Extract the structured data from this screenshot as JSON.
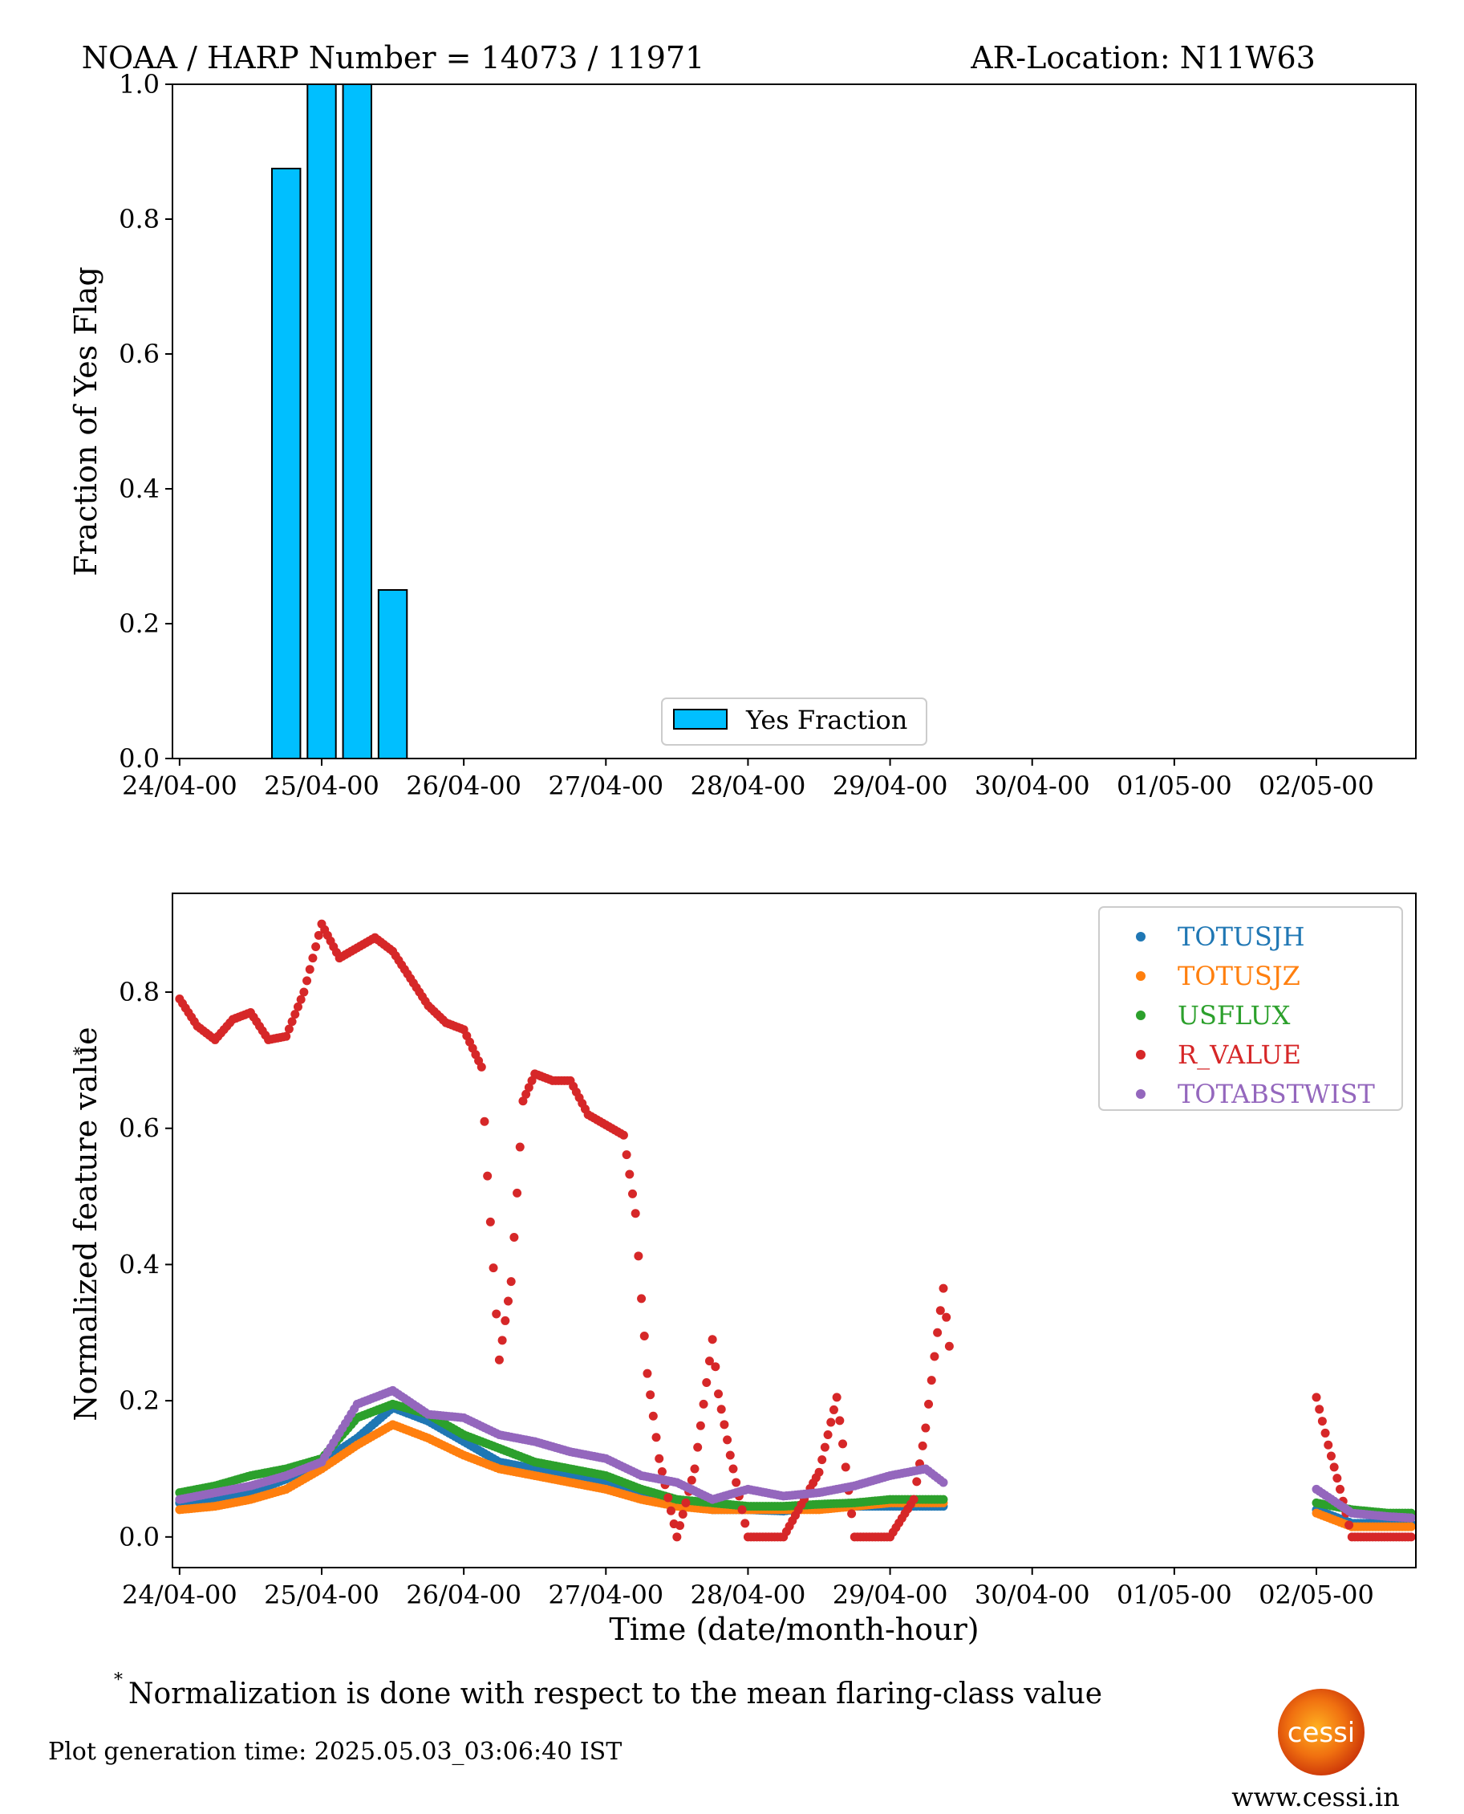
{
  "figure": {
    "footnote": "Normalization is done with respect to the mean flaring-class value",
    "footnote_marker": "*",
    "generation_time": "Plot generation time: 2025.05.03_03:06:40 IST",
    "logo_text": "cessi",
    "website": "www.cessi.in"
  },
  "chart_data": [
    {
      "type": "bar",
      "title_left": "NOAA / HARP Number = 14073 / 11971",
      "title_right": "AR-Location: N11W63",
      "ylabel": "Fraction of Yes Flag",
      "xlabel": "",
      "ylim": [
        0,
        1.0
      ],
      "xlim_days": [
        -0.05,
        8.7
      ],
      "yticks": [
        "0.0",
        "0.2",
        "0.4",
        "0.6",
        "0.8",
        "1.0"
      ],
      "xticks": [
        "24/04-00",
        "25/04-00",
        "26/04-00",
        "27/04-00",
        "28/04-00",
        "29/04-00",
        "30/04-00",
        "01/05-00",
        "02/05-00"
      ],
      "legend": {
        "label": "Yes Fraction",
        "position": "lower-center"
      },
      "color": "#00bfff",
      "bars": [
        {
          "x": "24/04-18",
          "value": 0.875
        },
        {
          "x": "25/04-00",
          "value": 1.0
        },
        {
          "x": "25/04-06",
          "value": 1.0
        },
        {
          "x": "25/04-12",
          "value": 0.25
        }
      ]
    },
    {
      "type": "scatter",
      "ylabel": "Normalized feature value",
      "ylabel_marker": "*",
      "xlabel": "Time (date/month-hour)",
      "ylim": [
        -0.045,
        0.945
      ],
      "xlim_days": [
        -0.05,
        8.7
      ],
      "yticks": [
        "0.0",
        "0.2",
        "0.4",
        "0.6",
        "0.8"
      ],
      "xticks": [
        "24/04-00",
        "25/04-00",
        "26/04-00",
        "27/04-00",
        "28/04-00",
        "29/04-00",
        "30/04-00",
        "01/05-00",
        "02/05-00"
      ],
      "legend_position": "upper-right",
      "series": [
        {
          "name": "TOTUSJH",
          "color": "#1f77b4",
          "points": [
            [
              "24/04-00",
              0.05
            ],
            [
              "24/04-06",
              0.055
            ],
            [
              "24/04-12",
              0.065
            ],
            [
              "24/04-18",
              0.085
            ],
            [
              "25/04-00",
              0.11
            ],
            [
              "25/04-06",
              0.145
            ],
            [
              "25/04-12",
              0.19
            ],
            [
              "25/04-18",
              0.17
            ],
            [
              "26/04-00",
              0.14
            ],
            [
              "26/04-06",
              0.11
            ],
            [
              "26/04-12",
              0.1
            ],
            [
              "26/04-18",
              0.09
            ],
            [
              "27/04-00",
              0.08
            ],
            [
              "27/04-06",
              0.06
            ],
            [
              "27/04-12",
              0.05
            ],
            [
              "27/04-18",
              0.04
            ],
            [
              "28/04-00",
              0.04
            ],
            [
              "28/04-06",
              0.038
            ],
            [
              "28/04-12",
              0.045
            ],
            [
              "28/04-18",
              0.045
            ],
            [
              "29/04-00",
              0.045
            ],
            [
              "29/04-06",
              0.045
            ],
            [
              "29/04-09",
              0.045
            ],
            [
              "02/05-00",
              0.04
            ],
            [
              "02/05-06",
              0.02
            ],
            [
              "02/05-12",
              0.02
            ],
            [
              "02/05-16",
              0.02
            ]
          ]
        },
        {
          "name": "TOTUSJZ",
          "color": "#ff7f0e",
          "points": [
            [
              "24/04-00",
              0.04
            ],
            [
              "24/04-06",
              0.045
            ],
            [
              "24/04-12",
              0.055
            ],
            [
              "24/04-18",
              0.07
            ],
            [
              "25/04-00",
              0.1
            ],
            [
              "25/04-06",
              0.135
            ],
            [
              "25/04-12",
              0.165
            ],
            [
              "25/04-18",
              0.145
            ],
            [
              "26/04-00",
              0.12
            ],
            [
              "26/04-06",
              0.1
            ],
            [
              "26/04-12",
              0.09
            ],
            [
              "26/04-18",
              0.08
            ],
            [
              "27/04-00",
              0.07
            ],
            [
              "27/04-06",
              0.055
            ],
            [
              "27/04-12",
              0.045
            ],
            [
              "27/04-18",
              0.04
            ],
            [
              "28/04-00",
              0.04
            ],
            [
              "28/04-06",
              0.04
            ],
            [
              "28/04-12",
              0.04
            ],
            [
              "28/04-18",
              0.045
            ],
            [
              "29/04-00",
              0.05
            ],
            [
              "29/04-06",
              0.05
            ],
            [
              "29/04-09",
              0.05
            ],
            [
              "02/05-00",
              0.035
            ],
            [
              "02/05-06",
              0.015
            ],
            [
              "02/05-12",
              0.015
            ],
            [
              "02/05-16",
              0.015
            ]
          ]
        },
        {
          "name": "USFLUX",
          "color": "#2ca02c",
          "points": [
            [
              "24/04-00",
              0.065
            ],
            [
              "24/04-06",
              0.075
            ],
            [
              "24/04-12",
              0.09
            ],
            [
              "24/04-18",
              0.1
            ],
            [
              "25/04-00",
              0.115
            ],
            [
              "25/04-06",
              0.175
            ],
            [
              "25/04-12",
              0.195
            ],
            [
              "25/04-18",
              0.18
            ],
            [
              "26/04-00",
              0.15
            ],
            [
              "26/04-06",
              0.13
            ],
            [
              "26/04-12",
              0.11
            ],
            [
              "26/04-18",
              0.1
            ],
            [
              "27/04-00",
              0.09
            ],
            [
              "27/04-06",
              0.07
            ],
            [
              "27/04-12",
              0.055
            ],
            [
              "27/04-18",
              0.05
            ],
            [
              "28/04-00",
              0.045
            ],
            [
              "28/04-06",
              0.045
            ],
            [
              "28/04-12",
              0.048
            ],
            [
              "28/04-18",
              0.05
            ],
            [
              "29/04-00",
              0.055
            ],
            [
              "29/04-06",
              0.055
            ],
            [
              "29/04-09",
              0.055
            ],
            [
              "02/05-00",
              0.05
            ],
            [
              "02/05-06",
              0.04
            ],
            [
              "02/05-12",
              0.035
            ],
            [
              "02/05-16",
              0.035
            ]
          ]
        },
        {
          "name": "R_VALUE",
          "color": "#d62728",
          "points": [
            [
              "24/04-00",
              0.79
            ],
            [
              "24/04-03",
              0.75
            ],
            [
              "24/04-06",
              0.73
            ],
            [
              "24/04-09",
              0.76
            ],
            [
              "24/04-12",
              0.77
            ],
            [
              "24/04-15",
              0.73
            ],
            [
              "24/04-18",
              0.735
            ],
            [
              "24/04-21",
              0.8
            ],
            [
              "25/04-00",
              0.9
            ],
            [
              "25/04-03",
              0.85
            ],
            [
              "25/04-06",
              0.865
            ],
            [
              "25/04-09",
              0.88
            ],
            [
              "25/04-12",
              0.86
            ],
            [
              "25/04-15",
              0.82
            ],
            [
              "25/04-18",
              0.78
            ],
            [
              "25/04-21",
              0.755
            ],
            [
              "26/04-00",
              0.745
            ],
            [
              "26/04-03",
              0.69
            ],
            [
              "26/04-04",
              0.53
            ],
            [
              "26/04-05",
              0.395
            ],
            [
              "26/04-06",
              0.26
            ],
            [
              "26/04-08",
              0.375
            ],
            [
              "26/04-09",
              0.505
            ],
            [
              "26/04-10",
              0.64
            ],
            [
              "26/04-12",
              0.68
            ],
            [
              "26/04-15",
              0.67
            ],
            [
              "26/04-18",
              0.67
            ],
            [
              "26/04-21",
              0.62
            ],
            [
              "27/04-00",
              0.605
            ],
            [
              "27/04-03",
              0.59
            ],
            [
              "27/04-05",
              0.475
            ],
            [
              "27/04-06",
              0.35
            ],
            [
              "27/04-07",
              0.24
            ],
            [
              "27/04-09",
              0.115
            ],
            [
              "27/04-12",
              0.0
            ],
            [
              "27/04-15",
              0.1
            ],
            [
              "27/04-18",
              0.29
            ],
            [
              "27/04-19",
              0.21
            ],
            [
              "27/04-21",
              0.12
            ],
            [
              "28/04-00",
              0.0
            ],
            [
              "28/04-03",
              0.0
            ],
            [
              "28/04-06",
              0.0
            ],
            [
              "28/04-12",
              0.095
            ],
            [
              "28/04-15",
              0.205
            ],
            [
              "28/04-18",
              0.0
            ],
            [
              "29/04-00",
              0.0
            ],
            [
              "29/04-04",
              0.055
            ],
            [
              "29/04-06",
              0.16
            ],
            [
              "29/04-07",
              0.23
            ],
            [
              "29/04-08",
              0.3
            ],
            [
              "29/04-09",
              0.365
            ],
            [
              "29/04-10",
              0.28
            ],
            [
              "02/05-00",
              0.205
            ],
            [
              "02/05-02",
              0.135
            ],
            [
              "02/05-04",
              0.07
            ],
            [
              "02/05-06",
              0.0
            ],
            [
              "02/05-12",
              0.0
            ],
            [
              "02/05-16",
              0.0
            ]
          ]
        },
        {
          "name": "TOTABSTWIST",
          "color": "#9467bd",
          "points": [
            [
              "24/04-00",
              0.055
            ],
            [
              "24/04-06",
              0.065
            ],
            [
              "24/04-12",
              0.075
            ],
            [
              "24/04-18",
              0.09
            ],
            [
              "25/04-00",
              0.11
            ],
            [
              "25/04-06",
              0.195
            ],
            [
              "25/04-12",
              0.215
            ],
            [
              "25/04-18",
              0.18
            ],
            [
              "26/04-00",
              0.175
            ],
            [
              "26/04-06",
              0.15
            ],
            [
              "26/04-12",
              0.14
            ],
            [
              "26/04-18",
              0.125
            ],
            [
              "27/04-00",
              0.115
            ],
            [
              "27/04-06",
              0.09
            ],
            [
              "27/04-12",
              0.08
            ],
            [
              "27/04-18",
              0.055
            ],
            [
              "28/04-00",
              0.07
            ],
            [
              "28/04-06",
              0.06
            ],
            [
              "28/04-12",
              0.065
            ],
            [
              "28/04-18",
              0.075
            ],
            [
              "29/04-00",
              0.09
            ],
            [
              "29/04-06",
              0.1
            ],
            [
              "29/04-09",
              0.08
            ],
            [
              "02/05-00",
              0.07
            ],
            [
              "02/05-06",
              0.035
            ],
            [
              "02/05-12",
              0.03
            ],
            [
              "02/05-16",
              0.028
            ]
          ]
        }
      ]
    }
  ]
}
